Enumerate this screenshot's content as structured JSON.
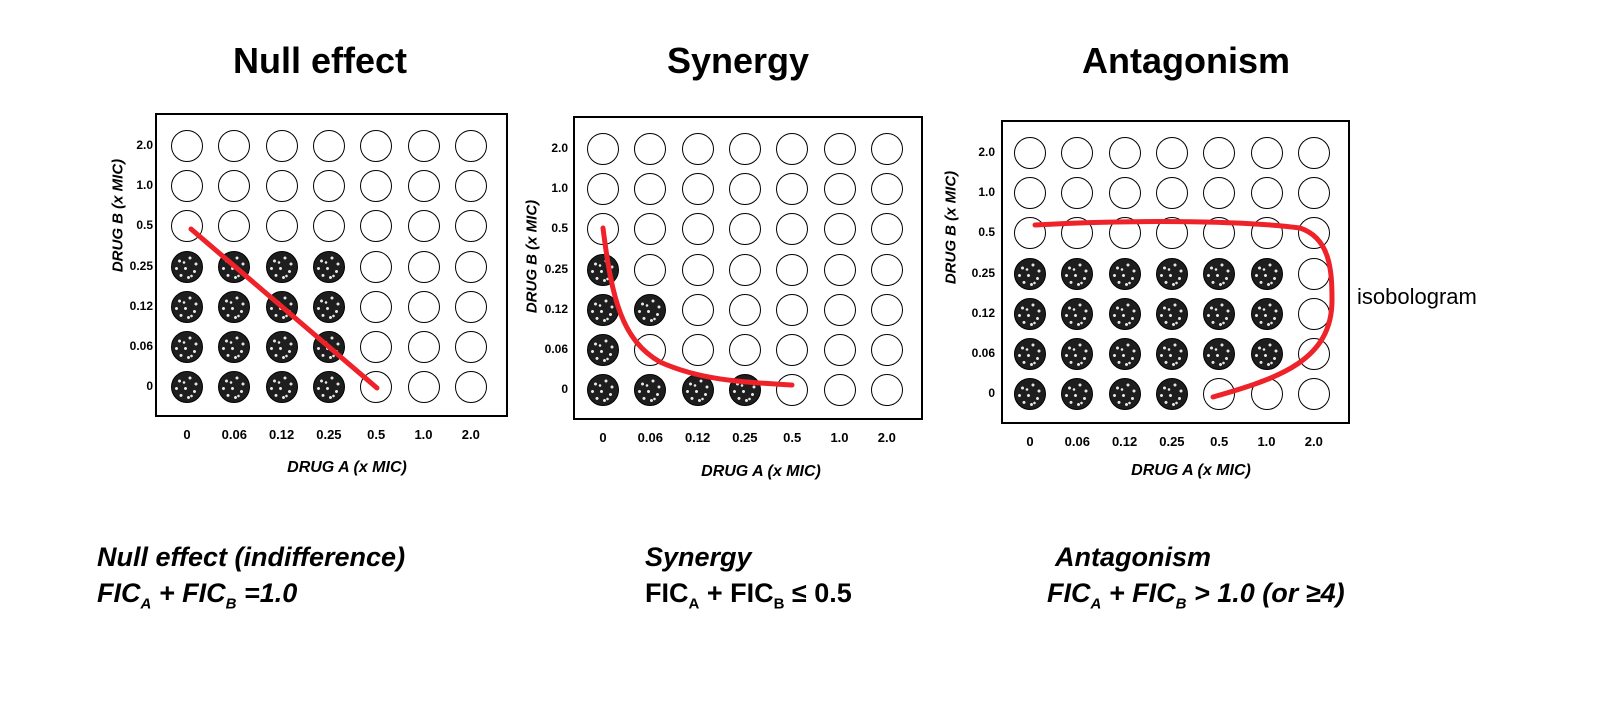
{
  "accent_color": "#ee2228",
  "filled_color": "#1e1e1e",
  "panels": [
    {
      "id": "null",
      "title": "Null effect",
      "xlabel": "DRUG A (x MIC)",
      "ylabel": "DRUG B (x MIC)",
      "x_ticks": [
        "0",
        "0.06",
        "0.12",
        "0.25",
        "0.5",
        "1.0",
        "2.0"
      ],
      "y_ticks": [
        "2.0",
        "1.0",
        "0.5",
        "0.25",
        "0.12",
        "0.06",
        "0"
      ],
      "growth_grid": [
        [
          0,
          0,
          0,
          0,
          0,
          0,
          0
        ],
        [
          0,
          0,
          0,
          0,
          0,
          0,
          0
        ],
        [
          0,
          0,
          0,
          0,
          0,
          0,
          0
        ],
        [
          1,
          1,
          1,
          1,
          0,
          0,
          0
        ],
        [
          1,
          1,
          1,
          1,
          0,
          0,
          0
        ],
        [
          1,
          1,
          1,
          1,
          0,
          0,
          0
        ],
        [
          1,
          1,
          1,
          1,
          0,
          0,
          0
        ]
      ]
    },
    {
      "id": "synergy",
      "title": "Synergy",
      "xlabel": "DRUG A (x MIC)",
      "ylabel": "DRUG B (x MIC)",
      "x_ticks": [
        "0",
        "0.06",
        "0.12",
        "0.25",
        "0.5",
        "1.0",
        "2.0"
      ],
      "y_ticks": [
        "2.0",
        "1.0",
        "0.5",
        "0.25",
        "0.12",
        "0.06",
        "0"
      ],
      "growth_grid": [
        [
          0,
          0,
          0,
          0,
          0,
          0,
          0
        ],
        [
          0,
          0,
          0,
          0,
          0,
          0,
          0
        ],
        [
          0,
          0,
          0,
          0,
          0,
          0,
          0
        ],
        [
          1,
          0,
          0,
          0,
          0,
          0,
          0
        ],
        [
          1,
          1,
          0,
          0,
          0,
          0,
          0
        ],
        [
          1,
          0,
          0,
          0,
          0,
          0,
          0
        ],
        [
          1,
          1,
          1,
          1,
          0,
          0,
          0
        ]
      ]
    },
    {
      "id": "antagonism",
      "title": "Antagonism",
      "xlabel": "DRUG A (x MIC)",
      "ylabel": "DRUG B (x MIC)",
      "x_ticks": [
        "0",
        "0.06",
        "0.12",
        "0.25",
        "0.5",
        "1.0",
        "2.0"
      ],
      "y_ticks": [
        "2.0",
        "1.0",
        "0.5",
        "0.25",
        "0.12",
        "0.06",
        "0"
      ],
      "growth_grid": [
        [
          0,
          0,
          0,
          0,
          0,
          0,
          0
        ],
        [
          0,
          0,
          0,
          0,
          0,
          0,
          0
        ],
        [
          0,
          0,
          0,
          0,
          0,
          0,
          0
        ],
        [
          1,
          1,
          1,
          1,
          1,
          1,
          0
        ],
        [
          1,
          1,
          1,
          1,
          1,
          1,
          0
        ],
        [
          1,
          1,
          1,
          1,
          1,
          1,
          0
        ],
        [
          1,
          1,
          1,
          1,
          0,
          0,
          0
        ]
      ]
    }
  ],
  "annotation": "isobologram",
  "captions": {
    "null": {
      "name": "Null effect (indifference)",
      "fic_a": "FIC",
      "sub_a": "A",
      "plus": " + FIC",
      "sub_b": "B",
      "rel": " =1.0"
    },
    "synergy": {
      "name": "Synergy",
      "fic_a": "FIC",
      "sub_a": "A",
      "plus": " + FIC",
      "sub_b": "B",
      "rel": " ≤ 0.5"
    },
    "antagonism": {
      "name": "Antagonism",
      "fic_a": "FIC",
      "sub_a": "A",
      "plus": " + FIC",
      "sub_b": "B",
      "rel": " > 1.0 (or ≥4)"
    }
  }
}
